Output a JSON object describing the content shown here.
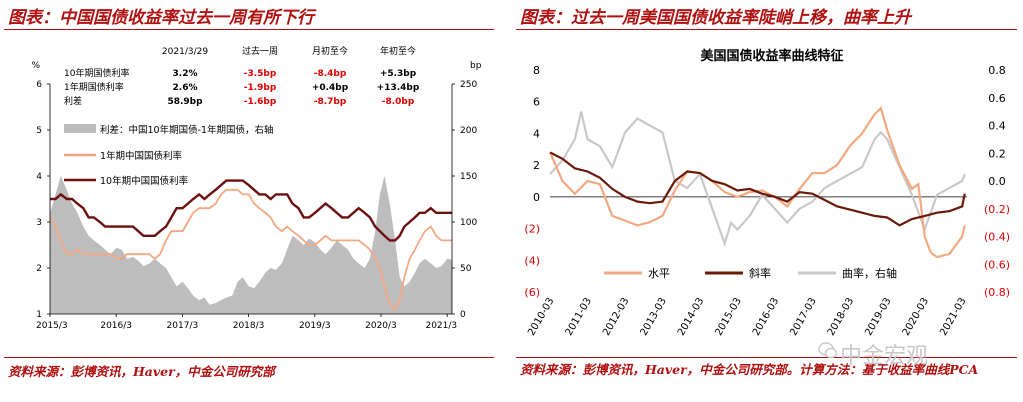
{
  "left": {
    "title": "图表：中国国债收益率过去一周有所下行",
    "source": "资料来源：彭博资讯，Haver，中金公司研究部",
    "table": {
      "headers": [
        "2021/3/29",
        "过去一周",
        "月初至今",
        "年初至今"
      ],
      "rows": [
        {
          "label": "10年期国债利率",
          "v0": "3.2%",
          "v1": "-3.5bp",
          "v2": "-8.4bp",
          "v3": "+5.3bp"
        },
        {
          "label": "1年期国债利率",
          "v0": "2.6%",
          "v1": "-1.9bp",
          "v2": "+0.4bp",
          "v3": "+13.4bp"
        },
        {
          "label": "利差",
          "v0": "58.9bp",
          "v1": "-1.6bp",
          "v2": "-8.7bp",
          "v3": "-8.0bp"
        }
      ]
    },
    "negative_color": "#e00000"
  },
  "right": {
    "title": "图表：过去一周美国国债收益率陡峭上移，曲率上升",
    "source": "资料来源：彭博资讯，Haver，中金公司研究部。计算方法：基于收益率曲线PCA"
  },
  "watermark": "中金宏观",
  "chart_data": [
    {
      "type": "line",
      "title": "",
      "y_unit_left": "%",
      "y_unit_right": "bp",
      "ylim": [
        1,
        6
      ],
      "yticks": [
        "1",
        "2",
        "3",
        "4",
        "5",
        "6"
      ],
      "y2lim": [
        0,
        250
      ],
      "y2ticks": [
        "0",
        "50",
        "100",
        "150",
        "200",
        "250"
      ],
      "x_ticks": [
        "2015/3",
        "2016/3",
        "2017/3",
        "2018/3",
        "2019/3",
        "2020/3",
        "2021/3"
      ],
      "x_tick_years": [
        2015.167,
        2016.167,
        2017.167,
        2018.167,
        2019.167,
        2020.167,
        2021.167
      ],
      "xlim": [
        2015.167,
        2021.24
      ],
      "legend": "upper-left",
      "series": [
        {
          "name": "利差：中国10年期国债-1年期国债，右轴",
          "kind": "area",
          "axis": "right",
          "color": "#bdbdbd",
          "x": [
            2015.17,
            2015.25,
            2015.33,
            2015.42,
            2015.5,
            2015.58,
            2015.67,
            2015.75,
            2015.83,
            2015.92,
            2016.0,
            2016.08,
            2016.17,
            2016.25,
            2016.33,
            2016.42,
            2016.5,
            2016.58,
            2016.67,
            2016.75,
            2016.83,
            2016.92,
            2017.0,
            2017.08,
            2017.17,
            2017.25,
            2017.33,
            2017.42,
            2017.5,
            2017.58,
            2017.67,
            2017.75,
            2017.83,
            2017.92,
            2018.0,
            2018.08,
            2018.17,
            2018.25,
            2018.33,
            2018.42,
            2018.5,
            2018.58,
            2018.67,
            2018.75,
            2018.83,
            2018.92,
            2019.0,
            2019.08,
            2019.17,
            2019.25,
            2019.33,
            2019.42,
            2019.5,
            2019.58,
            2019.67,
            2019.75,
            2019.83,
            2019.92,
            2020.0,
            2020.08,
            2020.15,
            2020.22,
            2020.3,
            2020.38,
            2020.45,
            2020.52,
            2020.6,
            2020.68,
            2020.75,
            2020.83,
            2020.92,
            2021.0,
            2021.08,
            2021.17,
            2021.24
          ],
          "values": [
            110,
            130,
            150,
            135,
            120,
            110,
            95,
            85,
            80,
            75,
            70,
            65,
            72,
            70,
            60,
            62,
            58,
            52,
            55,
            60,
            55,
            50,
            40,
            30,
            35,
            28,
            20,
            15,
            18,
            10,
            12,
            15,
            18,
            20,
            35,
            40,
            30,
            28,
            35,
            45,
            50,
            48,
            55,
            70,
            85,
            80,
            75,
            82,
            78,
            70,
            65,
            72,
            80,
            75,
            70,
            60,
            55,
            50,
            60,
            90,
            130,
            150,
            120,
            80,
            40,
            30,
            35,
            45,
            55,
            60,
            55,
            50,
            52,
            60,
            59
          ]
        },
        {
          "name": "1年期中国国债利率",
          "kind": "line",
          "axis": "left",
          "color": "#f4a882",
          "x": [
            2015.17,
            2015.25,
            2015.33,
            2015.42,
            2015.5,
            2015.58,
            2015.67,
            2015.75,
            2015.83,
            2015.92,
            2016.0,
            2016.08,
            2016.17,
            2016.25,
            2016.33,
            2016.42,
            2016.5,
            2016.58,
            2016.67,
            2016.75,
            2016.83,
            2016.92,
            2017.0,
            2017.08,
            2017.17,
            2017.25,
            2017.33,
            2017.42,
            2017.5,
            2017.58,
            2017.67,
            2017.75,
            2017.83,
            2017.92,
            2018.0,
            2018.08,
            2018.17,
            2018.25,
            2018.33,
            2018.42,
            2018.5,
            2018.58,
            2018.67,
            2018.75,
            2018.83,
            2018.92,
            2019.0,
            2019.08,
            2019.17,
            2019.25,
            2019.33,
            2019.42,
            2019.5,
            2019.58,
            2019.67,
            2019.75,
            2019.83,
            2019.92,
            2020.0,
            2020.08,
            2020.15,
            2020.22,
            2020.3,
            2020.38,
            2020.45,
            2020.52,
            2020.6,
            2020.68,
            2020.75,
            2020.83,
            2020.92,
            2021.0,
            2021.08,
            2021.17,
            2021.24
          ],
          "values": [
            3.1,
            2.9,
            2.6,
            2.3,
            2.3,
            2.4,
            2.3,
            2.3,
            2.3,
            2.3,
            2.3,
            2.3,
            2.2,
            2.2,
            2.3,
            2.3,
            2.3,
            2.3,
            2.3,
            2.2,
            2.3,
            2.6,
            2.8,
            2.8,
            2.8,
            3.0,
            3.2,
            3.3,
            3.3,
            3.3,
            3.4,
            3.6,
            3.7,
            3.7,
            3.7,
            3.6,
            3.6,
            3.4,
            3.3,
            3.2,
            3.1,
            2.9,
            2.8,
            2.9,
            2.8,
            2.7,
            2.6,
            2.5,
            2.5,
            2.6,
            2.7,
            2.6,
            2.6,
            2.6,
            2.6,
            2.6,
            2.6,
            2.5,
            2.4,
            2.2,
            2.0,
            1.6,
            1.2,
            1.1,
            1.3,
            1.8,
            2.2,
            2.4,
            2.6,
            2.8,
            2.9,
            2.7,
            2.6,
            2.6,
            2.6
          ]
        },
        {
          "name": "10年期中国国债利率",
          "kind": "line",
          "axis": "left",
          "color": "#6b0f0f",
          "x": [
            2015.17,
            2015.25,
            2015.33,
            2015.42,
            2015.5,
            2015.58,
            2015.67,
            2015.75,
            2015.83,
            2015.92,
            2016.0,
            2016.08,
            2016.17,
            2016.25,
            2016.33,
            2016.42,
            2016.5,
            2016.58,
            2016.67,
            2016.75,
            2016.83,
            2016.92,
            2017.0,
            2017.08,
            2017.17,
            2017.25,
            2017.33,
            2017.42,
            2017.5,
            2017.58,
            2017.67,
            2017.75,
            2017.83,
            2017.92,
            2018.0,
            2018.08,
            2018.17,
            2018.25,
            2018.33,
            2018.42,
            2018.5,
            2018.58,
            2018.67,
            2018.75,
            2018.83,
            2018.92,
            2019.0,
            2019.08,
            2019.17,
            2019.25,
            2019.33,
            2019.42,
            2019.5,
            2019.58,
            2019.67,
            2019.75,
            2019.83,
            2019.92,
            2020.0,
            2020.08,
            2020.15,
            2020.22,
            2020.3,
            2020.38,
            2020.45,
            2020.52,
            2020.6,
            2020.68,
            2020.75,
            2020.83,
            2020.92,
            2021.0,
            2021.08,
            2021.17,
            2021.24
          ],
          "values": [
            3.5,
            3.5,
            3.6,
            3.5,
            3.5,
            3.4,
            3.3,
            3.1,
            3.1,
            3.0,
            2.9,
            2.9,
            2.9,
            2.9,
            2.9,
            2.9,
            2.8,
            2.7,
            2.7,
            2.7,
            2.8,
            2.9,
            3.1,
            3.3,
            3.3,
            3.4,
            3.5,
            3.6,
            3.5,
            3.6,
            3.7,
            3.8,
            3.9,
            3.9,
            3.9,
            3.9,
            3.8,
            3.7,
            3.6,
            3.6,
            3.5,
            3.6,
            3.6,
            3.6,
            3.4,
            3.3,
            3.1,
            3.1,
            3.2,
            3.3,
            3.4,
            3.3,
            3.2,
            3.1,
            3.1,
            3.2,
            3.3,
            3.2,
            3.1,
            2.9,
            2.8,
            2.7,
            2.6,
            2.6,
            2.7,
            2.9,
            3.0,
            3.1,
            3.2,
            3.2,
            3.3,
            3.2,
            3.2,
            3.2,
            3.2
          ]
        }
      ]
    },
    {
      "type": "line",
      "title": "美国国债收益率曲线特征",
      "ylim": [
        -6,
        8
      ],
      "yticks": [
        "8",
        "6",
        "4",
        "2",
        "0",
        "(2)",
        "(4)",
        "(6)"
      ],
      "ytick_values": [
        8,
        6,
        4,
        2,
        0,
        -2,
        -4,
        -6
      ],
      "y2lim": [
        -0.8,
        0.8
      ],
      "y2ticks": [
        "0.8",
        "0.6",
        "0.4",
        "0.2",
        "0.0",
        "(0.2)",
        "(0.4)",
        "(0.6)",
        "(0.8)"
      ],
      "y2tick_values": [
        0.8,
        0.6,
        0.4,
        0.2,
        0.0,
        -0.2,
        -0.4,
        -0.6,
        -0.8
      ],
      "x_ticks": [
        "2010-03",
        "2011-03",
        "2012-03",
        "2013-03",
        "2014-03",
        "2015-03",
        "2016-03",
        "2017-03",
        "2018-03",
        "2019-03",
        "2020-03",
        "2021-03"
      ],
      "x_tick_years": [
        2010.167,
        2011.167,
        2012.167,
        2013.167,
        2014.167,
        2015.167,
        2016.167,
        2017.167,
        2018.167,
        2019.167,
        2020.167,
        2021.167
      ],
      "xlim": [
        2010.167,
        2021.3
      ],
      "legend": "bottom-center",
      "series": [
        {
          "name": "水平",
          "axis": "left",
          "color": "#f4a882",
          "x": [
            2010.17,
            2010.5,
            2010.83,
            2011.17,
            2011.5,
            2011.83,
            2012.17,
            2012.5,
            2012.83,
            2013.17,
            2013.5,
            2013.83,
            2014.17,
            2014.5,
            2014.83,
            2015.17,
            2015.5,
            2015.83,
            2016.17,
            2016.5,
            2016.83,
            2017.17,
            2017.5,
            2017.83,
            2018.17,
            2018.5,
            2018.83,
            2019.0,
            2019.17,
            2019.5,
            2019.83,
            2020.0,
            2020.17,
            2020.33,
            2020.5,
            2020.83,
            2021.17,
            2021.24
          ],
          "values": [
            2.8,
            1.0,
            0.2,
            1.0,
            0.8,
            -1.2,
            -1.5,
            -1.8,
            -1.6,
            -1.2,
            0.4,
            1.6,
            1.5,
            1.0,
            0.3,
            0.0,
            0.3,
            0.4,
            0.0,
            -0.6,
            0.5,
            1.5,
            1.5,
            2.0,
            3.2,
            4.0,
            5.2,
            5.6,
            4.2,
            2.0,
            0.5,
            0.8,
            -2.5,
            -3.5,
            -3.8,
            -3.6,
            -2.5,
            -1.8
          ]
        },
        {
          "name": "斜率",
          "axis": "left",
          "color": "#6b1a0a",
          "x": [
            2010.17,
            2010.5,
            2010.83,
            2011.17,
            2011.5,
            2011.83,
            2012.17,
            2012.5,
            2012.83,
            2013.17,
            2013.5,
            2013.83,
            2014.17,
            2014.5,
            2014.83,
            2015.17,
            2015.5,
            2015.83,
            2016.17,
            2016.5,
            2016.83,
            2017.17,
            2017.5,
            2017.83,
            2018.17,
            2018.5,
            2018.83,
            2019.17,
            2019.5,
            2019.83,
            2020.17,
            2020.5,
            2020.83,
            2021.17,
            2021.24
          ],
          "values": [
            2.8,
            2.4,
            1.8,
            1.6,
            1.2,
            0.5,
            0.0,
            -0.3,
            -0.4,
            -0.3,
            1.0,
            1.6,
            1.5,
            1.0,
            0.8,
            0.4,
            0.5,
            0.2,
            0.0,
            -0.3,
            0.3,
            0.2,
            -0.2,
            -0.6,
            -0.8,
            -1.0,
            -1.2,
            -1.3,
            -1.8,
            -1.4,
            -1.2,
            -1.0,
            -0.9,
            -0.6,
            0.2
          ]
        },
        {
          "name": "曲率，右轴",
          "axis": "right",
          "color": "#c8c8c8",
          "x": [
            2010.17,
            2010.5,
            2010.83,
            2011.0,
            2011.17,
            2011.5,
            2011.83,
            2012.17,
            2012.5,
            2012.83,
            2013.17,
            2013.5,
            2013.83,
            2014.17,
            2014.5,
            2014.83,
            2015.0,
            2015.17,
            2015.5,
            2015.83,
            2016.17,
            2016.5,
            2016.83,
            2017.17,
            2017.5,
            2017.83,
            2018.17,
            2018.5,
            2018.83,
            2019.0,
            2019.17,
            2019.5,
            2019.83,
            2020.17,
            2020.5,
            2020.83,
            2021.17,
            2021.24
          ],
          "values": [
            0.05,
            0.15,
            0.3,
            0.5,
            0.3,
            0.25,
            0.1,
            0.35,
            0.45,
            0.4,
            0.35,
            0.0,
            -0.05,
            0.05,
            -0.2,
            -0.45,
            -0.3,
            -0.35,
            -0.25,
            -0.1,
            -0.2,
            -0.3,
            -0.2,
            -0.15,
            -0.05,
            0.0,
            0.05,
            0.1,
            0.3,
            0.35,
            0.3,
            0.1,
            -0.1,
            -0.35,
            -0.1,
            -0.05,
            0.0,
            0.05
          ]
        }
      ]
    }
  ]
}
